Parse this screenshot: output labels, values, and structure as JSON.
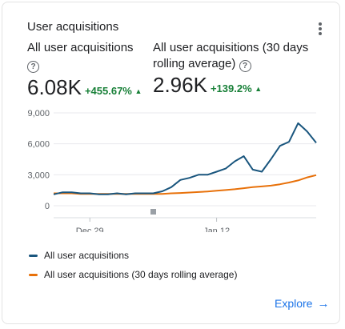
{
  "card": {
    "title": "User acquisitions",
    "menu_icon": "more-vert-icon",
    "metrics": [
      {
        "label": "All user acquisitions",
        "value": "6.08K",
        "change": "+455.67%"
      },
      {
        "label_line1": "All user acquisitions (30 days",
        "label_line2": "rolling average)",
        "value": "2.96K",
        "change": "+139.2%"
      }
    ],
    "explore_label": "Explore"
  },
  "colors": {
    "series1": "#1a567e",
    "series2": "#e8710a",
    "positive": "#188038",
    "link": "#1a73e8"
  },
  "chart_data": {
    "type": "line",
    "y_ticks": [
      "9,000",
      "6,000",
      "3,000",
      "0"
    ],
    "x_tick_labels": [
      "Dec 29",
      "Jan 12"
    ],
    "ylim": [
      0,
      9000
    ],
    "x_count": 30,
    "x_tick_indices": [
      4,
      18
    ],
    "series": [
      {
        "name": "All user acquisitions",
        "color": "#1a567e",
        "values": [
          1100,
          1300,
          1300,
          1200,
          1200,
          1100,
          1100,
          1200,
          1100,
          1200,
          1200,
          1200,
          1400,
          1800,
          2500,
          2700,
          3000,
          3000,
          3300,
          3600,
          4300,
          4800,
          3500,
          3300,
          4500,
          5800,
          6200,
          8000,
          7200,
          6100
        ]
      },
      {
        "name": "All user acquisitions (30 days rolling average)",
        "color": "#e8710a",
        "values": [
          1200,
          1200,
          1200,
          1150,
          1150,
          1150,
          1150,
          1150,
          1150,
          1150,
          1150,
          1150,
          1150,
          1200,
          1230,
          1280,
          1330,
          1380,
          1450,
          1520,
          1600,
          1700,
          1800,
          1870,
          1950,
          2080,
          2250,
          2450,
          2750,
          2960
        ]
      }
    ],
    "legend_position": "bottom"
  }
}
